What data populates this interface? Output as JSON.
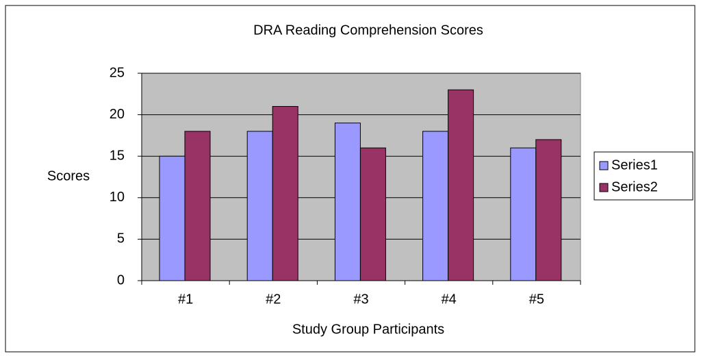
{
  "chart_data": {
    "type": "bar",
    "title": "DRA Reading Comprehension Scores",
    "xlabel": "Study Group Participants",
    "ylabel": "Scores",
    "categories": [
      "#1",
      "#2",
      "#3",
      "#4",
      "#5"
    ],
    "series": [
      {
        "name": "Series1",
        "color": "#9999ff",
        "values": [
          15,
          18,
          19,
          18,
          16
        ]
      },
      {
        "name": "Series2",
        "color": "#993366",
        "values": [
          18,
          21,
          16,
          23,
          17
        ]
      }
    ],
    "ylim": [
      0,
      25
    ],
    "yticks": [
      0,
      5,
      10,
      15,
      20,
      25
    ],
    "grid": true,
    "legend": "right"
  }
}
